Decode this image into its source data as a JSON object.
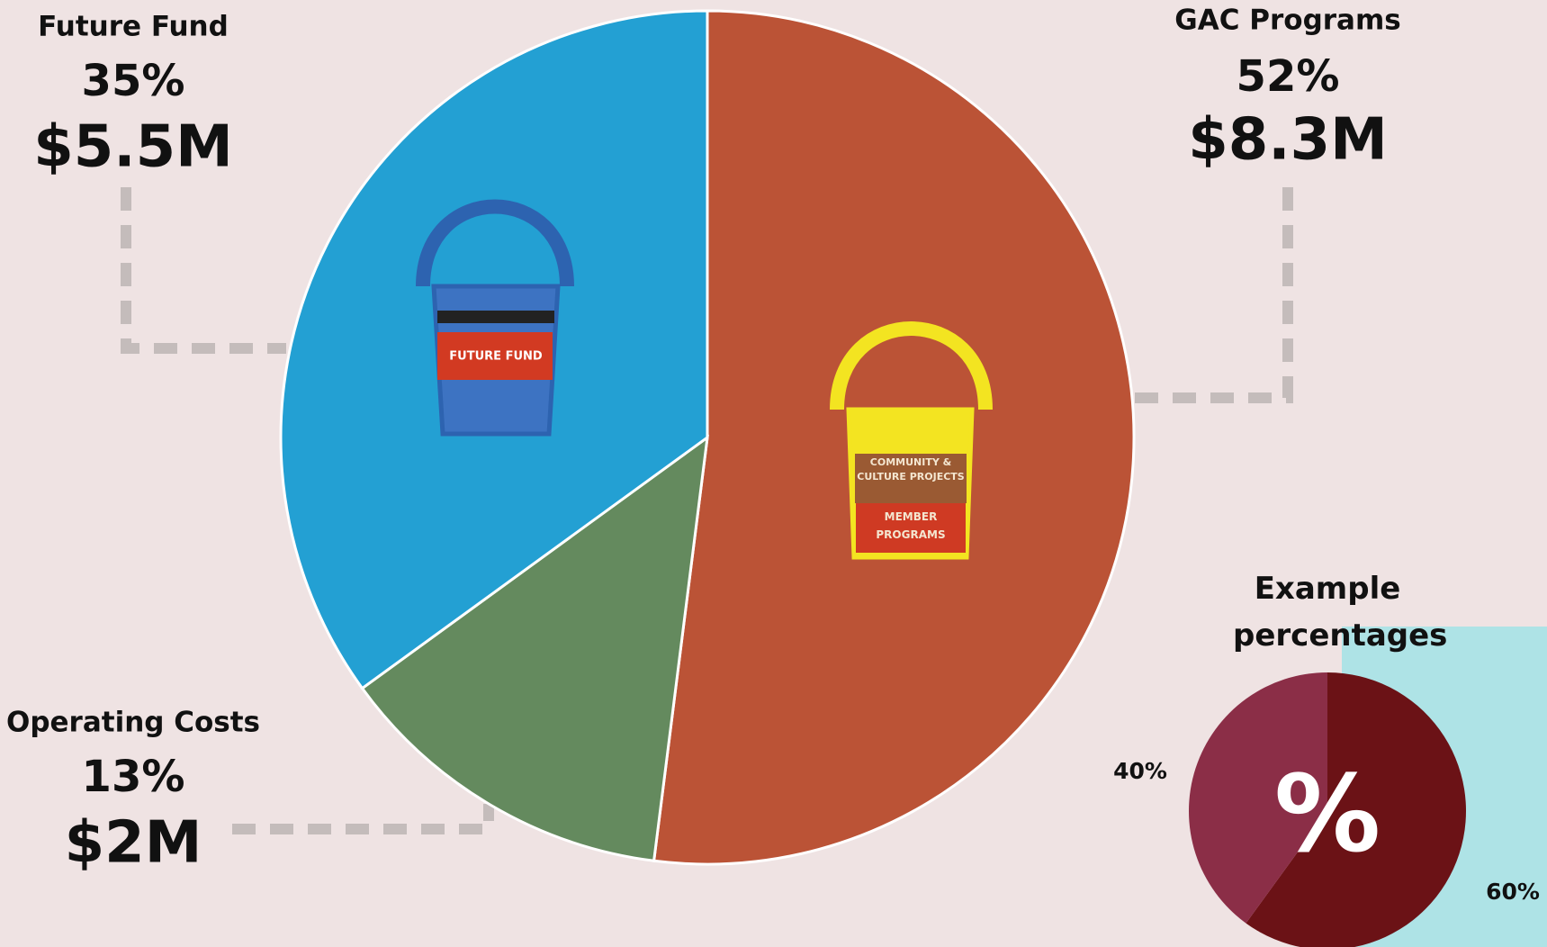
{
  "chart_data": [
    {
      "type": "pie",
      "categories": [
        "GAC Programs",
        "Operating Costs",
        "Future Fund"
      ],
      "values": [
        52,
        13,
        35
      ],
      "value_labels": [
        "52%",
        "13%",
        "35%"
      ],
      "amount_labels": [
        "$8.3M",
        "$2M",
        "$5.5M"
      ],
      "colors": [
        "#bb5336",
        "#648a5e",
        "#23a0d3"
      ]
    },
    {
      "type": "pie",
      "title": "Example percentages",
      "values": [
        60,
        40
      ],
      "value_labels": [
        "60%",
        "40%"
      ],
      "colors": [
        "#6b1216",
        "#8b2e47"
      ],
      "center_label": "%"
    }
  ],
  "icons": [
    {
      "labels": [
        "COMMUNITY & CULTURE PROJECTS",
        "MEMBER PROGRAMS"
      ]
    },
    {
      "labels": [
        "FUTURE FUND"
      ]
    }
  ]
}
